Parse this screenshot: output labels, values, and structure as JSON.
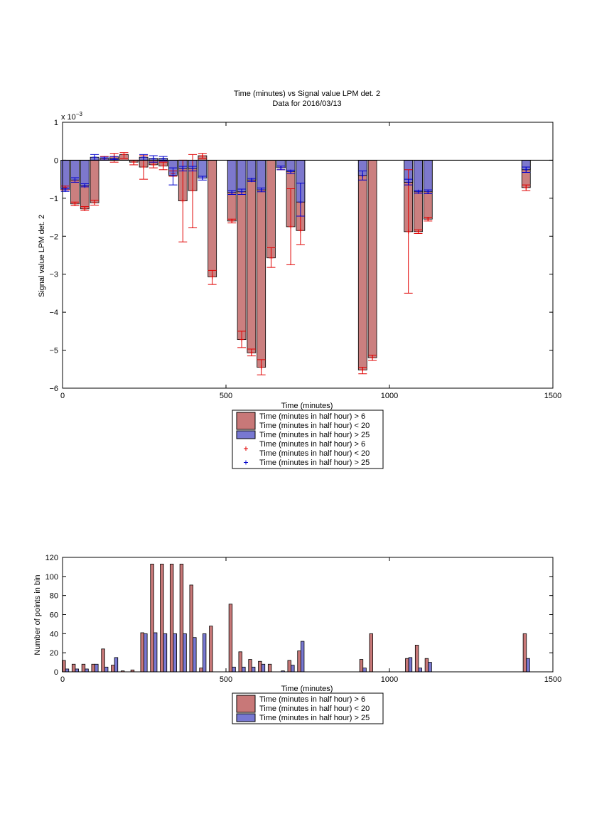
{
  "chart_data": [
    {
      "type": "bar",
      "title": "Time (minutes) vs Signal value LPM det. 2",
      "subtitle": "Data for 2016/03/13",
      "xlabel": "Time (minutes)",
      "ylabel": "Signal value LPM det. 2",
      "exponent_label": "x 10",
      "exponent_power": "−3",
      "xlim": [
        0,
        1500
      ],
      "ylim": [
        -6,
        1
      ],
      "xticks": [
        "0",
        "500",
        "1000",
        "1500"
      ],
      "yticks": [
        "1",
        "0",
        "−1",
        "−2",
        "−3",
        "−4",
        "−5",
        "−6"
      ],
      "bar_width_minutes": 26,
      "legend": {
        "placement": "below",
        "entries": [
          {
            "line1": "Time (minutes in half hour) > 6",
            "line2": "Time (minutes in half hour) < 20",
            "kind": "patch",
            "color": "#c87878"
          },
          {
            "line1": "Time (minutes in half hour) > 25",
            "line2": "",
            "kind": "patch",
            "color": "#7878d2"
          },
          {
            "line1": "Time (minutes in half hour) > 6",
            "line2": "Time (minutes in half hour) < 20",
            "kind": "plus",
            "color": "#e00000"
          },
          {
            "line1": "Time (minutes in half hour) > 25",
            "line2": "",
            "kind": "plus",
            "color": "#0000cc"
          }
        ]
      },
      "series": [
        {
          "color": "#c87878",
          "errcolor": "#e00000",
          "points": [
            {
              "x": 8,
              "y": -0.72,
              "lo": -0.78,
              "hi": -0.68
            },
            {
              "x": 38,
              "y": -1.15,
              "lo": -1.2,
              "hi": -1.1
            },
            {
              "x": 68,
              "y": -1.28,
              "lo": -1.32,
              "hi": -1.22
            },
            {
              "x": 98,
              "y": -1.12,
              "lo": -1.18,
              "hi": -1.05
            },
            {
              "x": 128,
              "y": 0.05,
              "lo": 0.0,
              "hi": 0.1
            },
            {
              "x": 158,
              "y": 0.1,
              "lo": -0.05,
              "hi": 0.18
            },
            {
              "x": 188,
              "y": 0.15,
              "lo": 0.05,
              "hi": 0.2
            },
            {
              "x": 218,
              "y": -0.05,
              "lo": -0.12,
              "hi": 0.0
            },
            {
              "x": 248,
              "y": -0.18,
              "lo": -0.5,
              "hi": 0.12
            },
            {
              "x": 278,
              "y": -0.12,
              "lo": -0.2,
              "hi": -0.05
            },
            {
              "x": 308,
              "y": -0.15,
              "lo": -0.25,
              "hi": -0.05
            },
            {
              "x": 338,
              "y": -0.35,
              "lo": -0.42,
              "hi": -0.28
            },
            {
              "x": 368,
              "y": -1.07,
              "lo": -2.15,
              "hi": 0.0
            },
            {
              "x": 398,
              "y": -0.8,
              "lo": -1.78,
              "hi": 0.15
            },
            {
              "x": 428,
              "y": 0.12,
              "lo": 0.05,
              "hi": 0.18
            },
            {
              "x": 458,
              "y": -3.07,
              "lo": -3.27,
              "hi": -2.9
            },
            {
              "x": 518,
              "y": -1.6,
              "lo": -1.65,
              "hi": -1.55
            },
            {
              "x": 548,
              "y": -4.72,
              "lo": -4.93,
              "hi": -4.5
            },
            {
              "x": 578,
              "y": -5.07,
              "lo": -5.15,
              "hi": -4.97
            },
            {
              "x": 608,
              "y": -5.45,
              "lo": -5.65,
              "hi": -5.25
            },
            {
              "x": 638,
              "y": -2.57,
              "lo": -2.82,
              "hi": -2.3
            },
            {
              "x": 668,
              "y": -0.2,
              "lo": -0.25,
              "hi": -0.15
            },
            {
              "x": 698,
              "y": -1.75,
              "lo": -2.75,
              "hi": -0.75
            },
            {
              "x": 728,
              "y": -1.85,
              "lo": -2.22,
              "hi": -1.47
            },
            {
              "x": 918,
              "y": -5.52,
              "lo": -5.62,
              "hi": -5.45
            },
            {
              "x": 948,
              "y": -5.2,
              "lo": -5.27,
              "hi": -5.13
            },
            {
              "x": 1058,
              "y": -1.88,
              "lo": -3.5,
              "hi": -0.25
            },
            {
              "x": 1088,
              "y": -1.88,
              "lo": -1.93,
              "hi": -1.83
            },
            {
              "x": 1118,
              "y": -1.55,
              "lo": -1.6,
              "hi": -1.5
            },
            {
              "x": 1418,
              "y": -0.72,
              "lo": -0.8,
              "hi": -0.65
            }
          ]
        },
        {
          "color": "#7878d2",
          "errcolor": "#0000cc",
          "points": [
            {
              "x": 8,
              "y": -0.78,
              "lo": -0.82,
              "hi": -0.74
            },
            {
              "x": 38,
              "y": -0.52,
              "lo": -0.58,
              "hi": -0.46
            },
            {
              "x": 68,
              "y": -0.67,
              "lo": -0.7,
              "hi": -0.62
            },
            {
              "x": 98,
              "y": 0.08,
              "lo": 0.0,
              "hi": 0.15
            },
            {
              "x": 128,
              "y": 0.05,
              "lo": 0.0,
              "hi": 0.08
            },
            {
              "x": 158,
              "y": 0.05,
              "lo": 0.02,
              "hi": 0.1
            },
            {
              "x": 248,
              "y": 0.08,
              "lo": 0.0,
              "hi": 0.15
            },
            {
              "x": 278,
              "y": 0.05,
              "lo": -0.05,
              "hi": 0.12
            },
            {
              "x": 308,
              "y": 0.05,
              "lo": -0.02,
              "hi": 0.1
            },
            {
              "x": 338,
              "y": -0.4,
              "lo": -0.65,
              "hi": -0.2
            },
            {
              "x": 368,
              "y": -0.22,
              "lo": -0.28,
              "hi": -0.16
            },
            {
              "x": 398,
              "y": -0.22,
              "lo": -0.28,
              "hi": -0.16
            },
            {
              "x": 428,
              "y": -0.47,
              "lo": -0.52,
              "hi": -0.42
            },
            {
              "x": 518,
              "y": -0.85,
              "lo": -0.9,
              "hi": -0.8
            },
            {
              "x": 548,
              "y": -0.83,
              "lo": -0.9,
              "hi": -0.76
            },
            {
              "x": 578,
              "y": -0.52,
              "lo": -0.56,
              "hi": -0.48
            },
            {
              "x": 608,
              "y": -0.78,
              "lo": -0.83,
              "hi": -0.73
            },
            {
              "x": 668,
              "y": -0.2,
              "lo": -0.25,
              "hi": -0.15
            },
            {
              "x": 698,
              "y": -0.3,
              "lo": -0.35,
              "hi": -0.26
            },
            {
              "x": 728,
              "y": -1.1,
              "lo": -1.47,
              "hi": -0.6
            },
            {
              "x": 918,
              "y": -0.4,
              "lo": -0.52,
              "hi": -0.28
            },
            {
              "x": 1058,
              "y": -0.58,
              "lo": -0.65,
              "hi": -0.5
            },
            {
              "x": 1088,
              "y": -0.83,
              "lo": -0.87,
              "hi": -0.8
            },
            {
              "x": 1118,
              "y": -0.83,
              "lo": -0.88,
              "hi": -0.78
            },
            {
              "x": 1418,
              "y": -0.25,
              "lo": -0.32,
              "hi": -0.18
            }
          ]
        }
      ]
    },
    {
      "type": "bar",
      "xlabel": "Time (minutes)",
      "ylabel": "Number of points in bin",
      "xlim": [
        0,
        1500
      ],
      "ylim": [
        0,
        120
      ],
      "xticks": [
        "0",
        "500",
        "1000",
        "1500"
      ],
      "yticks": [
        "0",
        "20",
        "40",
        "60",
        "80",
        "100",
        "120"
      ],
      "bar_width_minutes": 10,
      "legend": {
        "placement": "below",
        "entries": [
          {
            "line1": "Time (minutes in half hour) > 6",
            "line2": "Time (minutes in half hour) < 20",
            "kind": "patch",
            "color": "#c87878"
          },
          {
            "line1": "Time (minutes in half hour) > 25",
            "line2": "",
            "kind": "patch",
            "color": "#7878d2"
          }
        ]
      },
      "series": [
        {
          "color": "#c87878",
          "points": [
            {
              "x": 4,
              "y": 12
            },
            {
              "x": 34,
              "y": 8
            },
            {
              "x": 64,
              "y": 8
            },
            {
              "x": 94,
              "y": 8
            },
            {
              "x": 124,
              "y": 24
            },
            {
              "x": 154,
              "y": 7
            },
            {
              "x": 184,
              "y": 1
            },
            {
              "x": 214,
              "y": 2
            },
            {
              "x": 244,
              "y": 41
            },
            {
              "x": 274,
              "y": 113
            },
            {
              "x": 304,
              "y": 113
            },
            {
              "x": 334,
              "y": 113
            },
            {
              "x": 364,
              "y": 113
            },
            {
              "x": 394,
              "y": 91
            },
            {
              "x": 424,
              "y": 4
            },
            {
              "x": 454,
              "y": 48
            },
            {
              "x": 514,
              "y": 71
            },
            {
              "x": 544,
              "y": 21
            },
            {
              "x": 574,
              "y": 13
            },
            {
              "x": 604,
              "y": 11
            },
            {
              "x": 634,
              "y": 8
            },
            {
              "x": 694,
              "y": 12
            },
            {
              "x": 724,
              "y": 22
            },
            {
              "x": 914,
              "y": 13
            },
            {
              "x": 944,
              "y": 40
            },
            {
              "x": 1054,
              "y": 14
            },
            {
              "x": 1084,
              "y": 28
            },
            {
              "x": 1114,
              "y": 14
            },
            {
              "x": 1414,
              "y": 40
            }
          ]
        },
        {
          "color": "#7878d2",
          "points": [
            {
              "x": 14,
              "y": 3
            },
            {
              "x": 44,
              "y": 3
            },
            {
              "x": 74,
              "y": 3
            },
            {
              "x": 104,
              "y": 8
            },
            {
              "x": 134,
              "y": 5
            },
            {
              "x": 164,
              "y": 15
            },
            {
              "x": 254,
              "y": 40
            },
            {
              "x": 284,
              "y": 41
            },
            {
              "x": 314,
              "y": 40
            },
            {
              "x": 344,
              "y": 40
            },
            {
              "x": 374,
              "y": 40
            },
            {
              "x": 404,
              "y": 36
            },
            {
              "x": 434,
              "y": 40
            },
            {
              "x": 524,
              "y": 5
            },
            {
              "x": 554,
              "y": 5
            },
            {
              "x": 584,
              "y": 5
            },
            {
              "x": 614,
              "y": 8
            },
            {
              "x": 674,
              "y": 1
            },
            {
              "x": 704,
              "y": 7
            },
            {
              "x": 734,
              "y": 32
            },
            {
              "x": 924,
              "y": 4
            },
            {
              "x": 1064,
              "y": 15
            },
            {
              "x": 1094,
              "y": 4
            },
            {
              "x": 1124,
              "y": 10
            },
            {
              "x": 1424,
              "y": 14
            }
          ]
        }
      ]
    }
  ]
}
